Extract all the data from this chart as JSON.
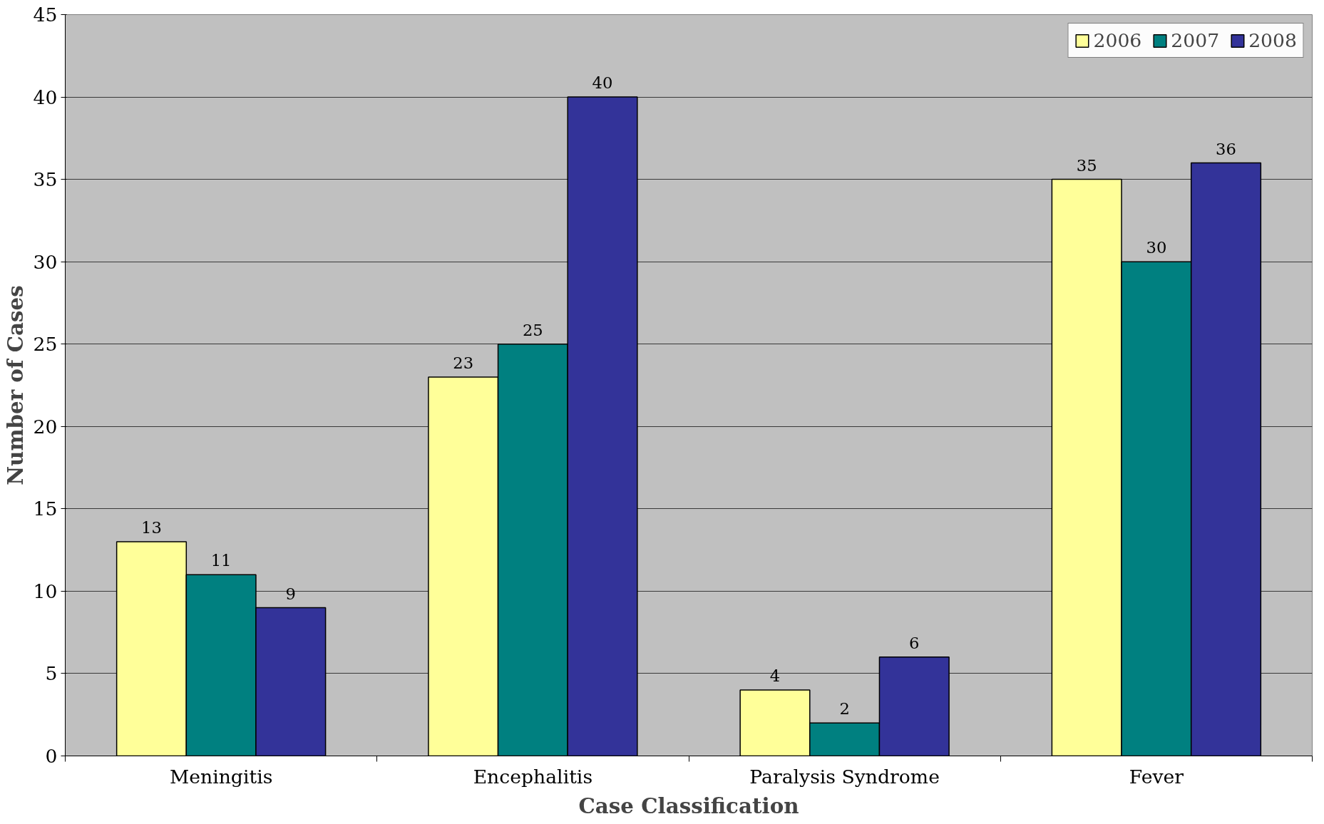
{
  "chart_data": {
    "type": "bar",
    "xlabel": "Case Classification",
    "ylabel": "Number of Cases",
    "categories": [
      "Meningitis",
      "Encephalitis",
      "Paralysis Syndrome",
      "Fever"
    ],
    "series": [
      {
        "name": "2006",
        "color": "#ffff99",
        "values": [
          13,
          23,
          4,
          35
        ]
      },
      {
        "name": "2007",
        "color": "#008080",
        "values": [
          11,
          25,
          2,
          30
        ]
      },
      {
        "name": "2008",
        "color": "#333399",
        "values": [
          9,
          40,
          6,
          36
        ]
      }
    ],
    "ylim": [
      0,
      45
    ],
    "yticks": [
      0,
      5,
      10,
      15,
      20,
      25,
      30,
      35,
      40,
      45
    ],
    "grid": "y",
    "legend": "top right",
    "data_labels": true
  }
}
